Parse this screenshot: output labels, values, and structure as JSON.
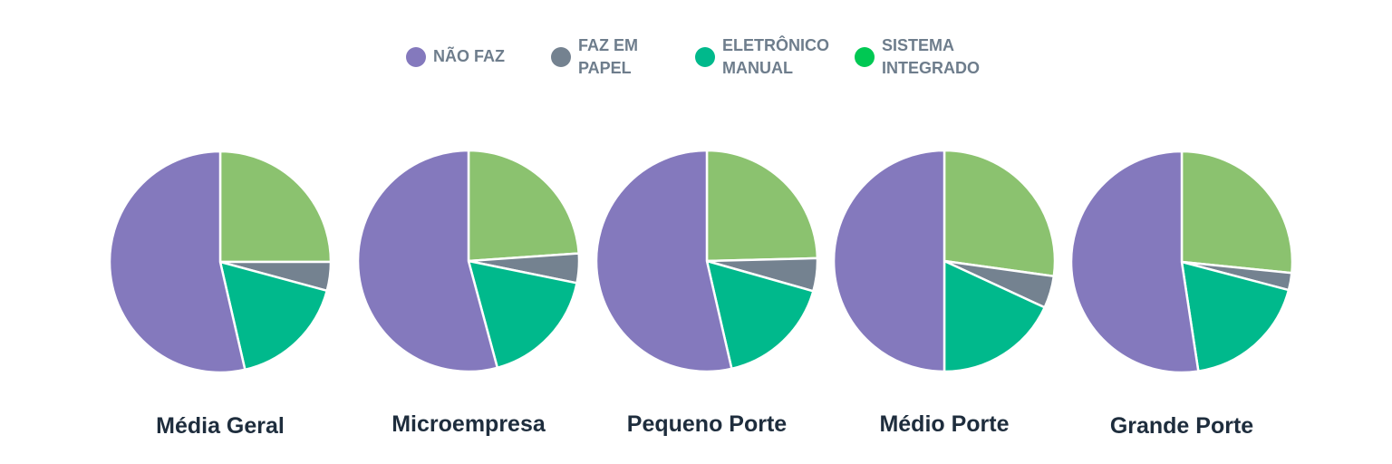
{
  "chart_data": {
    "type": "pie",
    "legend_position": "top",
    "series_names": [
      "NÃO FAZ",
      "FAZ EM PAPEL",
      "ELETRÔNICO MANUAL",
      "SISTEMA INTEGRADO"
    ],
    "legend_colors": [
      "#8479bd",
      "#748290",
      "#00b98c",
      "#00c853"
    ],
    "slice_colors": {
      "SISTEMA INTEGRADO": "#8bc26f",
      "FAZ EM PAPEL": "#748290",
      "ELETRÔNICO MANUAL": "#00b98c",
      "NÃO FAZ": "#8479bd"
    },
    "charts": [
      {
        "title": "Média Geral",
        "values": {
          "SISTEMA INTEGRADO": 25.0,
          "FAZ EM PAPEL": 4.2,
          "ELETRÔNICO MANUAL": 17.2,
          "NÃO FAZ": 53.6
        }
      },
      {
        "title": "Microempresa",
        "values": {
          "SISTEMA INTEGRADO": 23.9,
          "FAZ EM PAPEL": 4.3,
          "ELETRÔNICO MANUAL": 17.6,
          "NÃO FAZ": 54.2
        }
      },
      {
        "title": "Pequeno Porte",
        "values": {
          "SISTEMA INTEGRADO": 24.6,
          "FAZ EM PAPEL": 4.8,
          "ELETRÔNICO MANUAL": 17.0,
          "NÃO FAZ": 53.6
        }
      },
      {
        "title": "Médio Porte",
        "values": {
          "SISTEMA INTEGRADO": 27.2,
          "FAZ EM PAPEL": 4.7,
          "ELETRÔNICO MANUAL": 18.1,
          "NÃO FAZ": 50.0
        }
      },
      {
        "title": "Grande Porte",
        "values": {
          "SISTEMA INTEGRADO": 26.6,
          "FAZ EM PAPEL": 2.5,
          "ELETRÔNICO MANUAL": 18.5,
          "NÃO FAZ": 52.4
        }
      }
    ]
  }
}
